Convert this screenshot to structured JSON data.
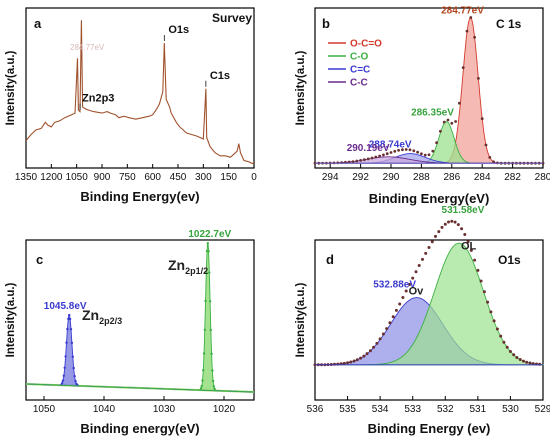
{
  "chart_data": [
    {
      "panel": "a",
      "type": "line",
      "title": "Survey",
      "xlabel": "Binding Energy(ev)",
      "ylabel": "Intensity(a.u.)",
      "xlim": [
        1350,
        0
      ],
      "x_reversed": true,
      "xticks": [
        "1350",
        "1200",
        "1050",
        "900",
        "750",
        "600",
        "450",
        "300",
        "150",
        "0"
      ],
      "y_ticks_shown": false,
      "series": [
        {
          "color": "#a0522d",
          "x": [
            1350,
            1320,
            1290,
            1260,
            1235,
            1220,
            1200,
            1180,
            1150,
            1120,
            1100,
            1080,
            1060,
            1045,
            1040,
            1030,
            1022,
            1015,
            1000,
            980,
            950,
            900,
            870,
            850,
            820,
            800,
            770,
            740,
            700,
            660,
            620,
            600,
            580,
            560,
            540,
            531,
            520,
            500,
            490,
            475,
            460,
            440,
            420,
            400,
            370,
            340,
            320,
            300,
            285,
            280,
            260,
            230,
            200,
            170,
            140,
            120,
            100,
            90,
            80,
            60,
            30,
            10,
            0
          ],
          "y": [
            0.18,
            0.22,
            0.25,
            0.26,
            0.3,
            0.28,
            0.27,
            0.3,
            0.31,
            0.33,
            0.34,
            0.35,
            0.36,
            0.72,
            0.38,
            0.37,
            0.97,
            0.4,
            0.39,
            0.38,
            0.37,
            0.36,
            0.37,
            0.36,
            0.35,
            0.33,
            0.34,
            0.33,
            0.32,
            0.33,
            0.34,
            0.35,
            0.38,
            0.42,
            0.5,
            0.82,
            0.45,
            0.4,
            0.36,
            0.33,
            0.3,
            0.27,
            0.25,
            0.23,
            0.22,
            0.21,
            0.2,
            0.19,
            0.52,
            0.2,
            0.14,
            0.1,
            0.08,
            0.08,
            0.07,
            0.09,
            0.11,
            0.16,
            0.1,
            0.05,
            0.04,
            0.03,
            0.03
          ]
        }
      ],
      "annotations": [
        {
          "text": "Zn2p3",
          "x": 1030
        },
        {
          "text": "O1s",
          "x": 531
        },
        {
          "text": "C1s",
          "x": 285
        }
      ]
    },
    {
      "panel": "b",
      "type": "line",
      "title": "C 1s",
      "xlabel": "Binding Energy(eV)",
      "ylabel": "Intensity(a.u.)",
      "xlim": [
        295,
        280
      ],
      "x_reversed": true,
      "xticks": [
        "294",
        "292",
        "290",
        "288",
        "286",
        "284",
        "282",
        "280"
      ],
      "y_ticks_shown": false,
      "legend_position": "top-left",
      "series": [
        {
          "name": "O-C=O",
          "color": "#d23a2c",
          "fill": "#f2a39a",
          "center": 284.77,
          "height": 0.91,
          "width": 0.5
        },
        {
          "name": "C-O",
          "color": "#3cb043",
          "fill": "#9be18f",
          "center": 286.35,
          "height": 0.26,
          "width": 0.5
        },
        {
          "name": "C=C",
          "color": "#3a3ad0",
          "fill": "#a4a6ec",
          "center": 288.74,
          "height": 0.06,
          "width": 1.0
        },
        {
          "name": "C-C",
          "color": "#6a2c8e",
          "fill": "#c9a9dd",
          "center": 290.19,
          "height": 0.04,
          "width": 1.4
        }
      ],
      "baseline": 0.03,
      "annotations": [
        {
          "text": "284.77eV",
          "x": 284.77
        },
        {
          "text": "286.35eV",
          "x": 286.35
        },
        {
          "text": "288.74eV",
          "x": 288.74
        },
        {
          "text": "290.19eV",
          "x": 290.19
        }
      ]
    },
    {
      "panel": "c",
      "type": "line",
      "title": "",
      "xlabel": "Binding energy(eV)",
      "ylabel": "Intensity(a.u.)",
      "xlim": [
        1053,
        1015
      ],
      "x_reversed": true,
      "xticks": [
        "1050",
        "1040",
        "1030",
        "1020"
      ],
      "y_ticks_shown": false,
      "series": [
        {
          "name": "Zn2p2/3",
          "color": "#3a3ad0",
          "fill": "#7a80e0",
          "center": 1045.8,
          "height": 0.44,
          "width": 0.45
        },
        {
          "name": "Zn2p1/2",
          "color": "#3cb043",
          "fill": "#8edb73",
          "center": 1022.7,
          "height": 0.92,
          "width": 0.38
        }
      ],
      "baseline_start": 0.1,
      "baseline_end": 0.05,
      "annotations": [
        {
          "text": "1045.8eV",
          "x": 1045.8
        },
        {
          "text": "1022.7eV",
          "x": 1022.7
        }
      ],
      "peak_labels": [
        {
          "main": "Zn",
          "sub": "2p2/3"
        },
        {
          "main": "Zn",
          "sub": "2p1/2"
        }
      ]
    },
    {
      "panel": "d",
      "type": "line",
      "title": "O1s",
      "xlabel": "Binding Energy (ev)",
      "ylabel": "Intensity(a.u.)",
      "xlim": [
        536,
        529
      ],
      "x_reversed": true,
      "xticks": [
        "536",
        "535",
        "534",
        "533",
        "532",
        "531",
        "530",
        "529"
      ],
      "y_ticks_shown": false,
      "series": [
        {
          "name": "OL",
          "color": "#3cb043",
          "fill": "#9be18f",
          "center": 531.58,
          "height": 0.76,
          "width": 0.75
        },
        {
          "name": "Ov",
          "color": "#3a3ad0",
          "fill": "#8b8ee6",
          "center": 532.88,
          "height": 0.42,
          "width": 0.8
        }
      ],
      "baseline": 0.22,
      "annotations": [
        {
          "text": "531.58eV",
          "x": 531.58
        },
        {
          "text": "532.88eV",
          "x": 532.88
        }
      ],
      "peak_labels": [
        {
          "main": "OL"
        },
        {
          "main": "Ov"
        }
      ]
    }
  ],
  "survey_extra_label": "284.77eV",
  "colors": {
    "survey_line": "#a0522d",
    "envelope_dots": "#6a3030",
    "frame": "#000000"
  }
}
